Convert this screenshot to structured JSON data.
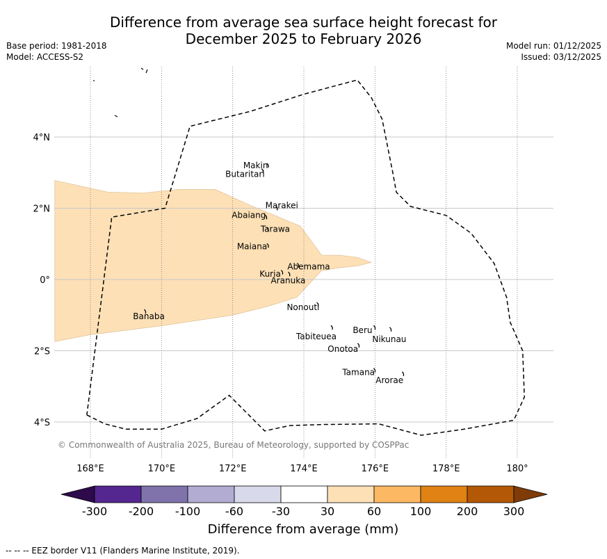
{
  "title": {
    "line1": "Difference from average sea surface height forecast for",
    "line2": "December 2025 to February 2026"
  },
  "meta_left": {
    "base_period": "Base period: 1981-2018",
    "model": "Model: ACCESS-S2"
  },
  "meta_right": {
    "model_run": "Model run: 01/12/2025",
    "issued": "Issued: 03/12/2025"
  },
  "map": {
    "lon_range": [
      167,
      181
    ],
    "lat_range": [
      -5,
      6
    ],
    "lon_ticks": [
      {
        "value": 168,
        "label": "168°E"
      },
      {
        "value": 170,
        "label": "170°E"
      },
      {
        "value": 172,
        "label": "172°E"
      },
      {
        "value": 174,
        "label": "174°E"
      },
      {
        "value": 176,
        "label": "176°E"
      },
      {
        "value": 178,
        "label": "178°E"
      },
      {
        "value": 180,
        "label": "180°"
      }
    ],
    "lat_ticks": [
      {
        "value": 4,
        "label": "4°N"
      },
      {
        "value": 2,
        "label": "2°N"
      },
      {
        "value": 0,
        "label": "0°"
      },
      {
        "value": -2,
        "label": "2°S"
      },
      {
        "value": -4,
        "label": "4°S"
      }
    ],
    "anomaly_region": {
      "category": "30 to 60",
      "color": "#fde0b6",
      "polygon": [
        [
          167,
          2.78
        ],
        [
          168.5,
          2.45
        ],
        [
          169.5,
          2.43
        ],
        [
          170.5,
          2.53
        ],
        [
          171.5,
          2.53
        ],
        [
          172.5,
          2.08
        ],
        [
          173.9,
          1.5
        ],
        [
          174.5,
          0.68
        ],
        [
          175,
          0.68
        ],
        [
          175.5,
          0.62
        ],
        [
          175.9,
          0.48
        ],
        [
          175.5,
          0.38
        ],
        [
          175,
          0.33
        ],
        [
          174.5,
          0.25
        ],
        [
          173.8,
          -0.5
        ],
        [
          173,
          -0.75
        ],
        [
          172,
          -1.0
        ],
        [
          170,
          -1.3
        ],
        [
          168,
          -1.55
        ],
        [
          167,
          -1.74
        ]
      ]
    },
    "eez_border": [
      [
        167.9,
        -3.8
      ],
      [
        168.4,
        -4.05
      ],
      [
        169,
        -4.2
      ],
      [
        170,
        -4.2
      ],
      [
        171,
        -3.9
      ],
      [
        171.9,
        -3.25
      ],
      [
        172.9,
        -4.25
      ],
      [
        173.6,
        -4.1
      ],
      [
        174.5,
        -4.07
      ],
      [
        176.1,
        -4.05
      ],
      [
        177.3,
        -4.37
      ],
      [
        178.5,
        -4.2
      ],
      [
        179.9,
        -3.95
      ],
      [
        180.2,
        -3.3
      ],
      [
        180.15,
        -2.0
      ],
      [
        179.8,
        -1.2
      ],
      [
        179.7,
        -0.5
      ],
      [
        179.35,
        0.45
      ],
      [
        178.7,
        1.3
      ],
      [
        178,
        1.8
      ],
      [
        177,
        2.05
      ],
      [
        176.6,
        2.45
      ],
      [
        176.5,
        3.0
      ],
      [
        176.2,
        4.5
      ],
      [
        175.9,
        5.1
      ],
      [
        175.5,
        5.6
      ],
      [
        174,
        5.2
      ],
      [
        172.5,
        4.72
      ],
      [
        170.8,
        4.3
      ],
      [
        170.1,
        2.0
      ],
      [
        168.6,
        1.75
      ],
      [
        167.9,
        -3.8
      ]
    ],
    "islands": [
      {
        "name": "Makin",
        "lon": 173,
        "lat": 3.2,
        "label_dx": -36,
        "label_dy": 4
      },
      {
        "name": "Butaritari",
        "lon": 172.85,
        "lat": 3.05,
        "label_dx": -54,
        "label_dy": 9
      },
      {
        "name": "Marakei",
        "lon": 173.25,
        "lat": 2.0,
        "label_dx": -17,
        "label_dy": 0
      },
      {
        "name": "Abaiang",
        "lon": 172.95,
        "lat": 1.75,
        "label_dx": -50,
        "label_dy": 1
      },
      {
        "name": "Tarawa",
        "lon": 173.0,
        "lat": 1.4,
        "label_dx": -11,
        "label_dy": 3
      },
      {
        "name": "Maiana",
        "lon": 173.0,
        "lat": 0.95,
        "label_dx": -45,
        "label_dy": 5
      },
      {
        "name": "Abemama",
        "lon": 173.85,
        "lat": 0.4,
        "label_dx": -16,
        "label_dy": 6
      },
      {
        "name": "Kuria",
        "lon": 173.4,
        "lat": 0.2,
        "label_dx": -33,
        "label_dy": 6
      },
      {
        "name": "Aranuka",
        "lon": 173.6,
        "lat": 0.15,
        "label_dx": -27,
        "label_dy": 13
      },
      {
        "name": "Nonouti",
        "lon": 174.4,
        "lat": -0.7,
        "label_dx": -45,
        "label_dy": 8
      },
      {
        "name": "Tabiteuea",
        "lon": 174.8,
        "lat": -1.35,
        "label_dx": -52,
        "label_dy": 17
      },
      {
        "name": "Beru",
        "lon": 176.0,
        "lat": -1.35,
        "label_dx": -32,
        "label_dy": 8
      },
      {
        "name": "Nikunau",
        "lon": 176.45,
        "lat": -1.4,
        "label_dx": -27,
        "label_dy": 18
      },
      {
        "name": "Onotoa",
        "lon": 175.55,
        "lat": -1.85,
        "label_dx": -45,
        "label_dy": 9
      },
      {
        "name": "Tamana",
        "lon": 176.0,
        "lat": -2.55,
        "label_dx": -47,
        "label_dy": 7
      },
      {
        "name": "Arorae",
        "lon": 176.8,
        "lat": -2.65,
        "label_dx": -40,
        "label_dy": 13
      },
      {
        "name": "Banaba",
        "lon": 169.55,
        "lat": -0.9,
        "label_dx": -18,
        "label_dy": 11
      }
    ],
    "copyright": "© Commonwealth of Australia 2025, Bureau of Meteorology, supported by COSPPac"
  },
  "legend": {
    "title": "Difference from average (mm)",
    "colors": [
      "#2d0a4b",
      "#54268f",
      "#8073ac",
      "#b2abd2",
      "#d8daeb",
      "#ffffff",
      "#fde0b6",
      "#fdb863",
      "#e08214",
      "#b35806",
      "#7f3b08"
    ],
    "tick_labels": [
      "-300",
      "-200",
      "-100",
      "-60",
      "-30",
      "30",
      "60",
      "100",
      "200",
      "300"
    ]
  },
  "footer": "--  --  -- EEZ border V11 (Flanders Marine Institute, 2019)."
}
